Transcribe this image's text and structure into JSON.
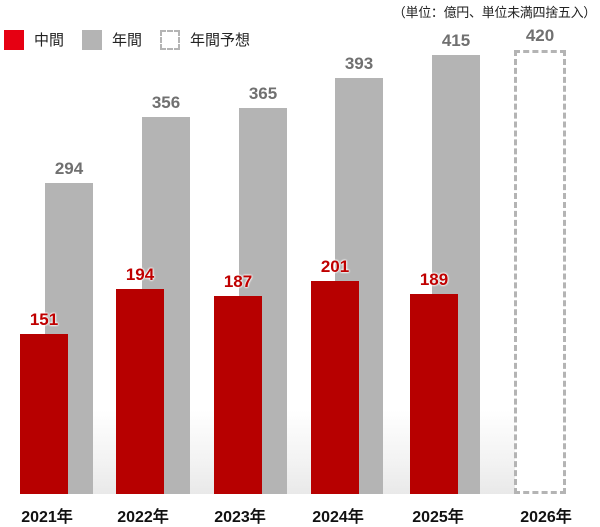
{
  "unit_note": "（単位：億円、単位未満四捨五入）",
  "legend": [
    {
      "label": "中間",
      "style": "red"
    },
    {
      "label": "年間",
      "style": "gray"
    },
    {
      "label": "年間予想",
      "style": "dashed"
    }
  ],
  "colors": {
    "interim": "#b70000",
    "annual": "#b4b4b4",
    "legend_red": "#e60012",
    "annual_label": "#707070",
    "interim_label": "#c00000"
  },
  "chart_data": {
    "type": "bar",
    "title": "",
    "unit": "億円",
    "xlabel": "",
    "ylabel": "",
    "categories": [
      "2021年",
      "2022年",
      "2023年",
      "2024年",
      "2025年",
      "2026年"
    ],
    "series": [
      {
        "name": "中間",
        "values": [
          151,
          194,
          187,
          201,
          189,
          null
        ]
      },
      {
        "name": "年間",
        "values": [
          294,
          356,
          365,
          393,
          415,
          null
        ]
      },
      {
        "name": "年間予想",
        "values": [
          null,
          null,
          null,
          null,
          null,
          420
        ]
      }
    ],
    "ylim": [
      0,
      440
    ],
    "grid": false,
    "legend_position": "top-left"
  },
  "bars": {
    "x_labels": [
      "2021年",
      "2022年",
      "2023年",
      "2024年",
      "2025年",
      "2026年"
    ],
    "interim_labels": [
      "151",
      "194",
      "187",
      "201",
      "189"
    ],
    "annual_labels": [
      "294",
      "356",
      "365",
      "393",
      "415"
    ],
    "forecast_label": "420"
  }
}
